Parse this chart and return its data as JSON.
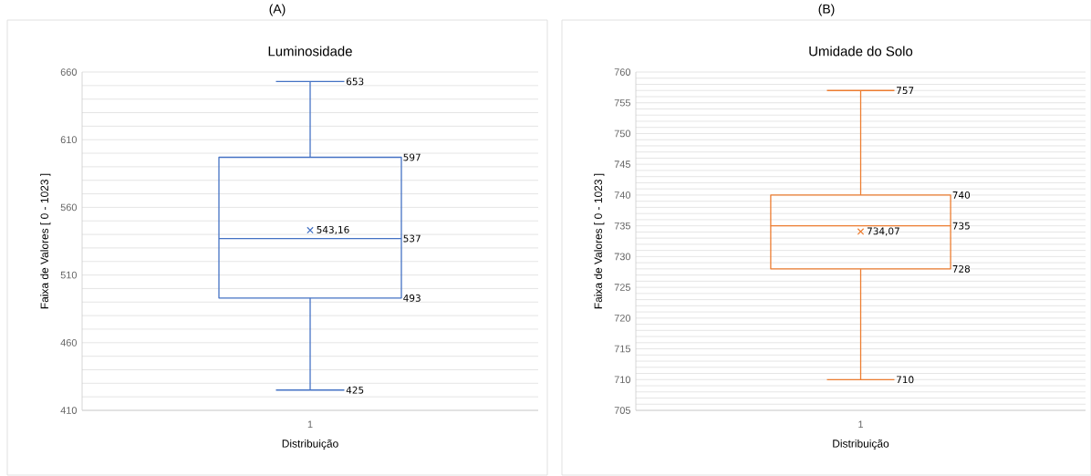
{
  "chart_data": [
    {
      "type": "box",
      "title": "Luminosidade",
      "xlabel": "Distribuição",
      "ylabel": "Faixa de Valores [ 0 - 1023 ]",
      "categories": [
        "1"
      ],
      "color": "#4472c4",
      "grid": "y",
      "boxes": [
        {
          "low": 425,
          "q1": 493,
          "median": 537,
          "q3": 597,
          "high": 653,
          "mean": 543.16
        }
      ],
      "ylim": [
        410,
        660
      ],
      "yticks": [
        410,
        {
          "value": 420,
          "label": null
        },
        {
          "value": 430,
          "label": null
        },
        {
          "value": 440,
          "label": null
        },
        {
          "value": 450,
          "label": null
        },
        460,
        {
          "value": 470,
          "label": null
        },
        {
          "value": 480,
          "label": null
        },
        {
          "value": 490,
          "label": null
        },
        {
          "value": 500,
          "label": null
        },
        510,
        {
          "value": 520,
          "label": null
        },
        {
          "value": 530,
          "label": null
        },
        {
          "value": 540,
          "label": null
        },
        {
          "value": 550,
          "label": null
        },
        560,
        {
          "value": 570,
          "label": null
        },
        {
          "value": 580,
          "label": null
        },
        {
          "value": 590,
          "label": null
        },
        {
          "value": 600,
          "label": null
        },
        610,
        {
          "value": 620,
          "label": null
        },
        {
          "value": 630,
          "label": null
        },
        {
          "value": 640,
          "label": null
        },
        {
          "value": 650,
          "label": null
        },
        660
      ],
      "annotations": [
        "(A)",
        "653",
        "597",
        "543,16",
        "537",
        "493",
        "425"
      ]
    },
    {
      "type": "box",
      "title": "Umidade do Solo",
      "xlabel": "Distribuição",
      "ylabel": "Faixa de Valores [ 0 - 1023 ]",
      "categories": [
        "1"
      ],
      "color": "#ed7d31",
      "grid": "y",
      "boxes": [
        {
          "low": 710,
          "q1": 728,
          "median": 735,
          "q3": 740,
          "high": 757,
          "mean": 734.07
        }
      ],
      "ylim": [
        705,
        760
      ],
      "yticks": [
        705,
        {
          "value": 706,
          "label": null
        },
        {
          "value": 707,
          "label": null
        },
        {
          "value": 708,
          "label": null
        },
        {
          "value": 709,
          "label": null
        },
        710,
        {
          "value": 711,
          "label": null
        },
        {
          "value": 712,
          "label": null
        },
        {
          "value": 713,
          "label": null
        },
        {
          "value": 714,
          "label": null
        },
        715,
        {
          "value": 716,
          "label": null
        },
        {
          "value": 717,
          "label": null
        },
        {
          "value": 718,
          "label": null
        },
        {
          "value": 719,
          "label": null
        },
        720,
        {
          "value": 721,
          "label": null
        },
        {
          "value": 722,
          "label": null
        },
        {
          "value": 723,
          "label": null
        },
        {
          "value": 724,
          "label": null
        },
        725,
        {
          "value": 726,
          "label": null
        },
        {
          "value": 727,
          "label": null
        },
        {
          "value": 728,
          "label": null
        },
        {
          "value": 729,
          "label": null
        },
        730,
        {
          "value": 731,
          "label": null
        },
        {
          "value": 732,
          "label": null
        },
        {
          "value": 733,
          "label": null
        },
        {
          "value": 734,
          "label": null
        },
        735,
        {
          "value": 736,
          "label": null
        },
        {
          "value": 737,
          "label": null
        },
        {
          "value": 738,
          "label": null
        },
        {
          "value": 739,
          "label": null
        },
        740,
        {
          "value": 741,
          "label": null
        },
        {
          "value": 742,
          "label": null
        },
        {
          "value": 743,
          "label": null
        },
        {
          "value": 744,
          "label": null
        },
        745,
        {
          "value": 746,
          "label": null
        },
        {
          "value": 747,
          "label": null
        },
        {
          "value": 748,
          "label": null
        },
        {
          "value": 749,
          "label": null
        },
        750,
        {
          "value": 751,
          "label": null
        },
        {
          "value": 752,
          "label": null
        },
        {
          "value": 753,
          "label": null
        },
        {
          "value": 754,
          "label": null
        },
        755,
        {
          "value": 756,
          "label": null
        },
        {
          "value": 757,
          "label": null
        },
        {
          "value": 758,
          "label": null
        },
        {
          "value": 759,
          "label": null
        },
        760
      ],
      "annotations": [
        "(B)",
        "757",
        "740",
        "735",
        "734,07",
        "728",
        "710"
      ]
    }
  ]
}
